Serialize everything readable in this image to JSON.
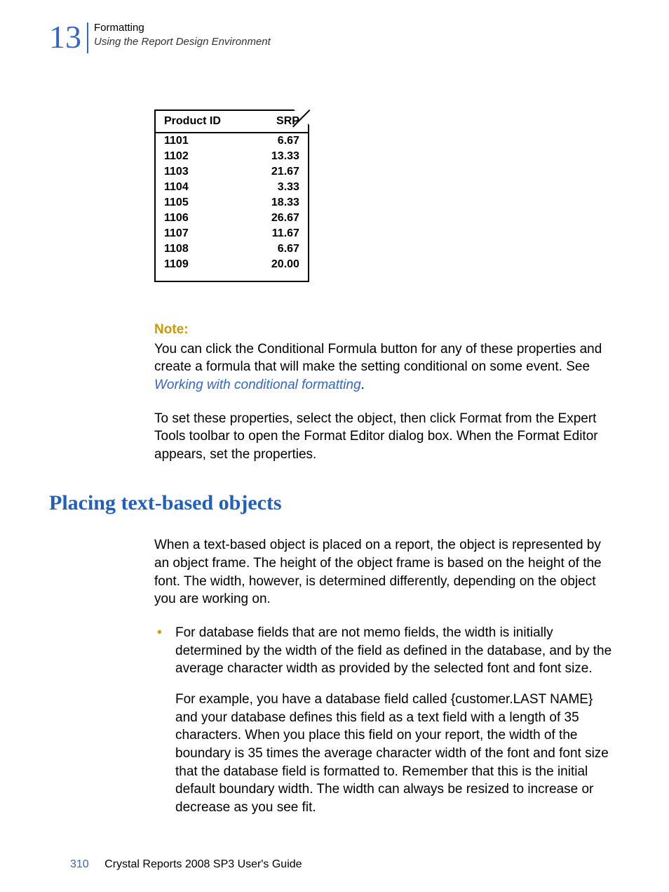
{
  "header": {
    "chapter_number": "13",
    "title": "Formatting",
    "subtitle": "Using the Report Design Environment"
  },
  "figure_table": {
    "columns": [
      "Product ID",
      "SRP"
    ],
    "rows": [
      [
        "1101",
        "6.67"
      ],
      [
        "1102",
        "13.33"
      ],
      [
        "1103",
        "21.67"
      ],
      [
        "1104",
        "3.33"
      ],
      [
        "1105",
        "18.33"
      ],
      [
        "1106",
        "26.67"
      ],
      [
        "1107",
        "11.67"
      ],
      [
        "1108",
        "6.67"
      ],
      [
        "1109",
        "20.00"
      ]
    ],
    "border_color": "#000000",
    "font_weight": "bold",
    "font_size_pt": 12
  },
  "note": {
    "label": "Note:",
    "text": "You can click the Conditional Formula button for any of these properties and create a formula that will make the setting conditional on some event. See ",
    "link_text": "Working with conditional formatting",
    "after_link": "."
  },
  "para1": "To set these properties, select the object, then click Format from the Expert Tools toolbar to open the Format Editor dialog box. When the Format Editor appears, set the properties.",
  "section_title": "Placing text-based objects",
  "para2": "When a text-based object is placed on a report, the object is represented by an object frame. The height of the object frame is based on the height of the font. The width, however, is determined differently, depending on the object you are working on.",
  "bullet1_first": "For database fields that are not memo fields, the width is initially determined by the width of the field as defined in the database, and by the average character width as provided by the selected font and font size.",
  "bullet1_second": "For example, you have a database field called {customer.LAST NAME} and your database defines this field as a text field with a length of 35 characters. When you place this field on your report, the width of the boundary is 35 times the average character width of the font and font size that the database field is formatted to. Remember that this is the initial default boundary width. The width can always be resized to increase or decrease as you see fit.",
  "footer": {
    "page_number": "310",
    "doc_title": "Crystal Reports 2008 SP3 User's Guide"
  },
  "colors": {
    "accent_blue": "#3366cc",
    "accent_gold": "#cc9900",
    "text": "#000000",
    "background": "#ffffff"
  }
}
